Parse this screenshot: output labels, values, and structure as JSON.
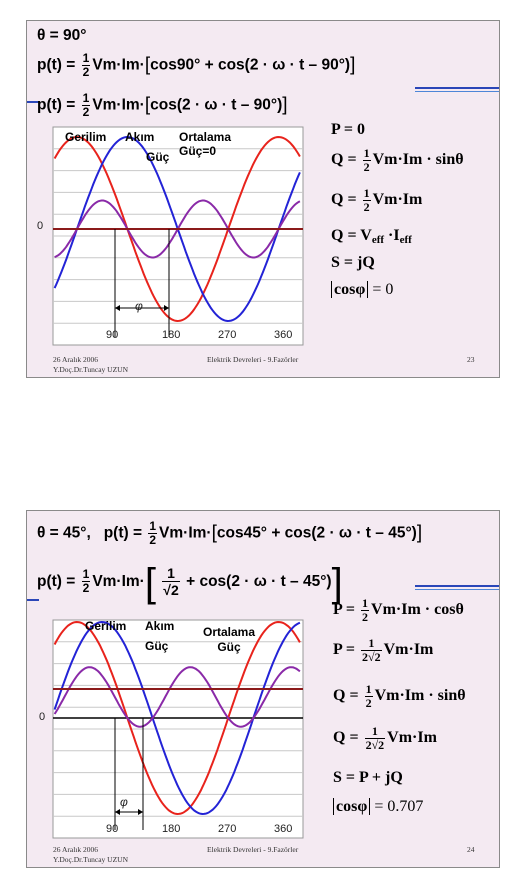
{
  "slides": [
    {
      "theta_line": "θ = 90°",
      "eq1": {
        "lhs": "p(t) =",
        "frac_num": "1",
        "frac_den": "2",
        "mid": "Vm·Im·",
        "inner": "cos90° + cos(2 · ω · t – 90°)"
      },
      "eq2": {
        "lhs": "p(t) =",
        "frac_num": "1",
        "frac_den": "2",
        "mid": "Vm·Im·",
        "inner": "cos(2 · ω · t – 90°)"
      },
      "plot_labels": {
        "voltage": "Gerilim",
        "current": "Akım",
        "avg_power": "Ortalama\nGüç=0",
        "power": "Güç",
        "zero": "0",
        "phi": "φ"
      },
      "x_ticks": [
        "90",
        "180",
        "270",
        "360"
      ],
      "right_eqs": {
        "p": "P = 0",
        "q1_lhs": "Q =",
        "q1_num": "1",
        "q1_den": "2",
        "q1_rhs": "Vm·Im · sinθ",
        "q2_lhs": "Q =",
        "q2_num": "1",
        "q2_den": "2",
        "q2_rhs": "Vm·Im",
        "q3_lhs": "Q = V",
        "q3_sub1": "eff",
        "q3_mid": " ·I",
        "q3_sub2": "eff",
        "s": "S = jQ",
        "cos_abs": "cosφ",
        "cos_val": " = 0"
      },
      "footer": {
        "date": "26 Aralık 2006",
        "author": "Y.Doç.Dr.Tuncay UZUN",
        "course": "Elektrik Devreleri - 9.Fazörler",
        "page": "23"
      }
    },
    {
      "theta_line": "θ = 45°,",
      "eq1": {
        "lhs": "p(t) =",
        "frac_num": "1",
        "frac_den": "2",
        "mid": "Vm·Im·",
        "inner": "cos45° + cos(2 · ω · t – 45°)"
      },
      "eq2": {
        "lhs": "p(t) =",
        "frac_num": "1",
        "frac_den": "2",
        "mid": "Vm·Im·",
        "inner_num": "1",
        "inner_den": "√2",
        "inner_rest": "+ cos(2 · ω · t – 45°)"
      },
      "plot_labels": {
        "voltage": "Gerilim",
        "current": "Akım",
        "avg_power": "Ortalama\nGüç",
        "power": "Güç",
        "zero": "0",
        "phi": "φ"
      },
      "x_ticks": [
        "90",
        "180",
        "270",
        "360"
      ],
      "right_eqs": {
        "p1_lhs": "P =",
        "p1_num": "1",
        "p1_den": "2",
        "p1_rhs": "Vm·Im · cosθ",
        "p2_lhs": "P =",
        "p2_num": "1",
        "p2_den": "2√2",
        "p2_rhs": "Vm·Im",
        "q1_lhs": "Q =",
        "q1_num": "1",
        "q1_den": "2",
        "q1_rhs": "Vm·Im · sinθ",
        "q2_lhs": "Q =",
        "q2_num": "1",
        "q2_den": "2√2",
        "q2_rhs": "Vm·Im",
        "s": "S = P + jQ",
        "cos_abs": "cosφ",
        "cos_val": " = 0.707"
      },
      "footer": {
        "date": "26 Aralık 2006",
        "author": "Y.Doç.Dr.Tuncay UZUN",
        "course": "Elektrik Devreleri - 9.Fazörler",
        "page": "24"
      }
    }
  ],
  "colors": {
    "voltage": "#e8231c",
    "current": "#2323d6",
    "power": "#8a2aa8",
    "average": "#8b1a1a",
    "rule": "#2a46b8"
  }
}
